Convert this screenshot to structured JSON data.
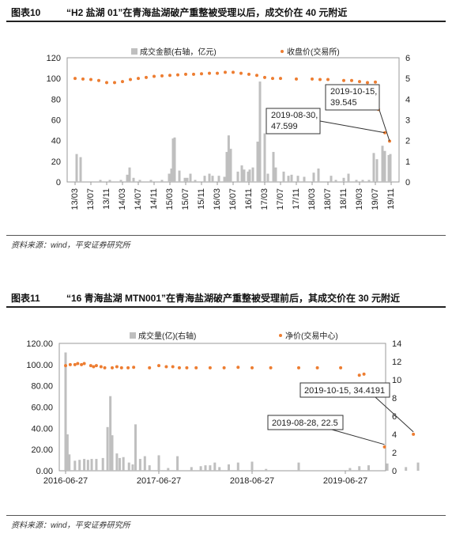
{
  "figures": [
    {
      "tag": "图表10",
      "title": "“H2 盐湖 01”在青海盐湖破产重整被受理以后，成交价在 40 元附近",
      "source": "资料来源：wind，平安证券研究所"
    },
    {
      "tag": "图表11",
      "title": "“16 青海盐湖 MTN001”在青海盐湖破产重整被受理前后，其成交价在 30 元附近",
      "source": "资料来源：wind，平安证券研究所"
    }
  ],
  "chart_data": [
    {
      "type": "bar+scatter",
      "categories": [
        "13/03",
        "13/07",
        "13/11",
        "14/03",
        "14/07",
        "14/11",
        "15/03",
        "15/07",
        "15/11",
        "16/03",
        "16/07",
        "16/11",
        "17/03",
        "17/07",
        "17/11",
        "18/03",
        "18/07",
        "18/11",
        "19/03",
        "19/07",
        "19/11"
      ],
      "left_axis": {
        "min": 0,
        "max": 120,
        "ticks": [
          "0",
          "20",
          "40",
          "60",
          "80",
          "100",
          "120"
        ]
      },
      "right_axis": {
        "min": 0,
        "max": 6,
        "ticks": [
          "0",
          "1",
          "2",
          "3",
          "4",
          "5",
          "6"
        ]
      },
      "legend": {
        "bars": "成交金额(右轴，亿元)",
        "dots": "收盘价(交易所)",
        "position": "top"
      },
      "series_price": {
        "name": "收盘价(交易所)",
        "color": "#ED7D31",
        "points": [
          [
            0,
            100
          ],
          [
            0.5,
            99.5
          ],
          [
            1,
            99
          ],
          [
            1.5,
            98
          ],
          [
            2,
            96
          ],
          [
            2.5,
            96
          ],
          [
            3,
            97
          ],
          [
            3.5,
            99
          ],
          [
            4,
            100
          ],
          [
            4.5,
            101
          ],
          [
            5,
            102
          ],
          [
            5.5,
            102.5
          ],
          [
            6,
            103
          ],
          [
            6.5,
            103.5
          ],
          [
            7,
            104
          ],
          [
            7.5,
            104
          ],
          [
            8,
            104.5
          ],
          [
            8.5,
            105
          ],
          [
            9,
            105
          ],
          [
            9.5,
            106
          ],
          [
            10,
            106
          ],
          [
            10.5,
            105
          ],
          [
            11,
            104
          ],
          [
            11.5,
            103
          ],
          [
            12,
            101
          ],
          [
            12.5,
            100
          ],
          [
            13,
            100
          ],
          [
            14,
            99.5
          ],
          [
            15,
            99.5
          ],
          [
            15.5,
            99
          ],
          [
            16,
            99
          ],
          [
            17,
            98
          ],
          [
            17.5,
            98
          ],
          [
            18,
            97
          ],
          [
            18.5,
            96
          ],
          [
            19,
            96.5
          ],
          [
            19.2,
            70
          ],
          [
            19.6,
            47.6
          ],
          [
            19.9,
            39.5
          ]
        ]
      },
      "series_volume": {
        "name": "成交金额(右轴，亿元)",
        "color": "#BFBFBF",
        "points": [
          [
            0.1,
            1.35
          ],
          [
            0.35,
            1.2
          ],
          [
            1.6,
            0.1
          ],
          [
            2.2,
            0.1
          ],
          [
            2.9,
            0.1
          ],
          [
            3.3,
            0.35
          ],
          [
            3.45,
            0.7
          ],
          [
            3.7,
            0.2
          ],
          [
            4.1,
            0.1
          ],
          [
            4.8,
            0.1
          ],
          [
            5.5,
            0.1
          ],
          [
            5.95,
            0.4
          ],
          [
            6.1,
            0.65
          ],
          [
            6.2,
            2.1
          ],
          [
            6.3,
            2.15
          ],
          [
            6.6,
            0.55
          ],
          [
            6.95,
            0.2
          ],
          [
            7.1,
            0.2
          ],
          [
            7.3,
            0.4
          ],
          [
            7.6,
            0.1
          ],
          [
            8.2,
            0.3
          ],
          [
            8.5,
            0.4
          ],
          [
            8.7,
            0.3
          ],
          [
            9.1,
            0.3
          ],
          [
            9.45,
            0.25
          ],
          [
            9.6,
            1.45
          ],
          [
            9.72,
            2.25
          ],
          [
            9.85,
            1.6
          ],
          [
            10.3,
            0.5
          ],
          [
            10.55,
            0.8
          ],
          [
            10.7,
            0.6
          ],
          [
            10.95,
            0.5
          ],
          [
            11.05,
            0.6
          ],
          [
            11.25,
            0.7
          ],
          [
            11.55,
            1.95
          ],
          [
            11.7,
            4.85
          ],
          [
            12.0,
            2.35
          ],
          [
            12.2,
            0.4
          ],
          [
            12.55,
            1.45
          ],
          [
            12.7,
            0.7
          ],
          [
            13.2,
            0.5
          ],
          [
            13.5,
            0.3
          ],
          [
            13.7,
            0.35
          ],
          [
            14.1,
            0.3
          ],
          [
            14.5,
            0.25
          ],
          [
            15.1,
            0.45
          ],
          [
            15.4,
            0.65
          ],
          [
            16.2,
            0.3
          ],
          [
            16.5,
            0.1
          ],
          [
            17.0,
            0.2
          ],
          [
            17.3,
            0.4
          ],
          [
            17.8,
            0.1
          ],
          [
            18.2,
            0.1
          ],
          [
            18.6,
            0.1
          ],
          [
            18.9,
            1.4
          ],
          [
            19.1,
            1.1
          ],
          [
            19.45,
            1.75
          ],
          [
            19.6,
            1.5
          ],
          [
            19.85,
            1.3
          ],
          [
            19.95,
            1.35
          ]
        ]
      },
      "annotations": [
        {
          "label": "2019-08-30,",
          "value": "47.599"
        },
        {
          "label": "2019-10-15,",
          "value": "39.545"
        }
      ]
    },
    {
      "type": "bar+scatter",
      "categories": [
        "2016-06-27",
        "2017-06-27",
        "2018-06-27",
        "2019-06-27"
      ],
      "left_axis": {
        "min": 0,
        "max": 120,
        "ticks": [
          "0.00",
          "20.00",
          "40.00",
          "60.00",
          "80.00",
          "100.00",
          "120.00"
        ]
      },
      "right_axis": {
        "min": 0,
        "max": 14,
        "ticks": [
          "0",
          "2",
          "4",
          "6",
          "8",
          "10",
          "12",
          "14"
        ]
      },
      "legend": {
        "bars": "成交量(亿)(右轴)",
        "dots": "净价(交易中心)",
        "position": "top"
      },
      "series_price": {
        "name": "净价(交易中心)",
        "color": "#ED7D31",
        "points": [
          [
            0,
            99
          ],
          [
            0.05,
            100
          ],
          [
            0.1,
            100
          ],
          [
            0.13,
            101
          ],
          [
            0.17,
            100
          ],
          [
            0.2,
            101
          ],
          [
            0.27,
            99
          ],
          [
            0.3,
            98
          ],
          [
            0.33,
            99
          ],
          [
            0.38,
            98
          ],
          [
            0.42,
            97
          ],
          [
            0.5,
            97
          ],
          [
            0.55,
            98
          ],
          [
            0.6,
            97
          ],
          [
            0.67,
            97
          ],
          [
            0.73,
            97.5
          ],
          [
            0.9,
            97
          ],
          [
            1.0,
            99
          ],
          [
            1.08,
            98
          ],
          [
            1.15,
            98
          ],
          [
            1.22,
            97
          ],
          [
            1.3,
            97
          ],
          [
            1.4,
            97
          ],
          [
            1.55,
            97
          ],
          [
            1.7,
            97
          ],
          [
            1.85,
            97.5
          ],
          [
            2.0,
            97
          ],
          [
            2.2,
            97
          ],
          [
            2.5,
            97
          ],
          [
            2.7,
            97
          ],
          [
            2.95,
            97
          ],
          [
            3.15,
            90
          ],
          [
            3.2,
            91
          ],
          [
            3.42,
            22.5
          ],
          [
            3.73,
            34.4
          ]
        ]
      },
      "series_volume": {
        "name": "成交量(亿)(右轴)",
        "color": "#BFBFBF",
        "points": [
          [
            0.0,
            13.0
          ],
          [
            0.02,
            4.0
          ],
          [
            0.04,
            1.8
          ],
          [
            0.1,
            1.1
          ],
          [
            0.15,
            1.2
          ],
          [
            0.2,
            1.3
          ],
          [
            0.24,
            1.2
          ],
          [
            0.28,
            1.3
          ],
          [
            0.33,
            1.3
          ],
          [
            0.4,
            1.4
          ],
          [
            0.45,
            4.8
          ],
          [
            0.48,
            8.2
          ],
          [
            0.5,
            3.9
          ],
          [
            0.55,
            1.9
          ],
          [
            0.58,
            1.4
          ],
          [
            0.62,
            1.5
          ],
          [
            0.68,
            0.9
          ],
          [
            0.72,
            0.7
          ],
          [
            0.75,
            5.1
          ],
          [
            0.8,
            1.3
          ],
          [
            0.85,
            1.6
          ],
          [
            0.9,
            0.6
          ],
          [
            1.0,
            1.7
          ],
          [
            1.1,
            0.3
          ],
          [
            1.2,
            1.6
          ],
          [
            1.35,
            0.4
          ],
          [
            1.45,
            0.5
          ],
          [
            1.5,
            0.6
          ],
          [
            1.55,
            0.6
          ],
          [
            1.6,
            0.9
          ],
          [
            1.65,
            0.4
          ],
          [
            1.75,
            0.7
          ],
          [
            1.85,
            0.9
          ],
          [
            2.0,
            1.0
          ],
          [
            2.15,
            0.2
          ],
          [
            2.5,
            0.9
          ],
          [
            3.05,
            0.3
          ],
          [
            3.15,
            0.5
          ],
          [
            3.25,
            0.6
          ],
          [
            3.45,
            0.8
          ],
          [
            3.65,
            0.4
          ],
          [
            3.78,
            0.9
          ]
        ]
      },
      "annotations": [
        {
          "label": "2019-08-28, 22.5"
        },
        {
          "label": "2019-10-15, 34.4191"
        }
      ]
    }
  ]
}
